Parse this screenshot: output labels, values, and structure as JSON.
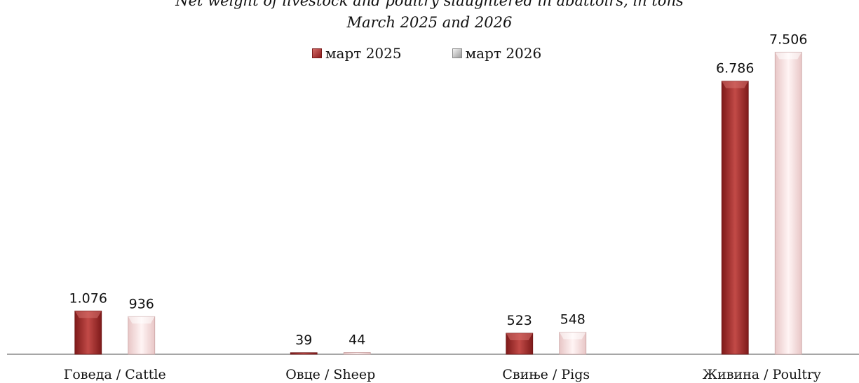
{
  "chart_data": {
    "type": "bar",
    "title": "Net weight of livestock and poultry slaughtered in abattoirs, in tons",
    "subtitle": "March 2025 and 2026",
    "categories": [
      "Говеда / Cattle",
      "Овце / Sheep",
      "Свиње / Pigs",
      "Живина / Poultry"
    ],
    "series": [
      {
        "name": "март 2025",
        "values": [
          1076,
          39,
          523,
          6786
        ],
        "labels": [
          "1.076",
          "39",
          "523",
          "6.786"
        ],
        "color": "#a8302e"
      },
      {
        "name": "март 2026",
        "values": [
          936,
          44,
          548,
          7506
        ],
        "labels": [
          "936",
          "44",
          "548",
          "7.506"
        ],
        "color": "#f7dada"
      }
    ],
    "ylim": [
      0,
      8000
    ],
    "legend": "top-center",
    "grid": false
  }
}
